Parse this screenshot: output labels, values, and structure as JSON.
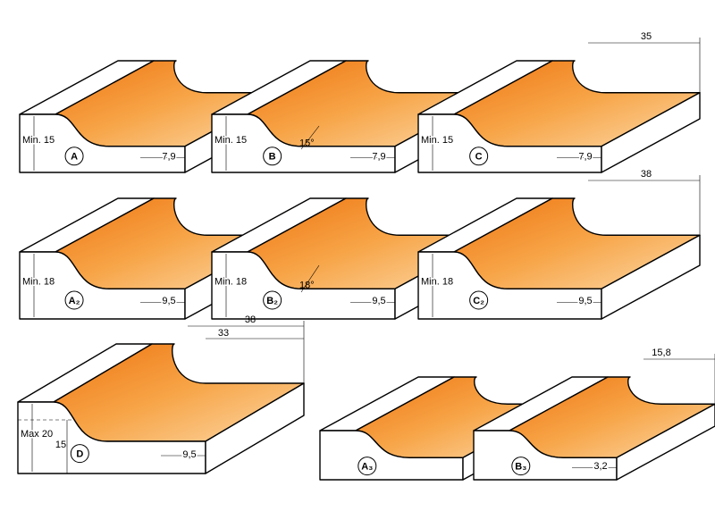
{
  "profiles": [
    {
      "label": "A",
      "min": "Min. 15",
      "width": "7,9"
    },
    {
      "label": "B",
      "min": "Min. 15",
      "angle": "15°",
      "width": "7,9"
    },
    {
      "label": "C",
      "min": "Min. 15",
      "width": "7,9",
      "top": "35"
    },
    {
      "label": "A₂",
      "min": "Min. 18",
      "width": "9,5"
    },
    {
      "label": "B₂",
      "min": "Min. 18",
      "angle": "18°",
      "width": "9,5"
    },
    {
      "label": "C₂",
      "min": "Min. 18",
      "width": "9,5",
      "top": "38"
    },
    {
      "label": "D",
      "min": "Max 20",
      "depth": "15",
      "width": "9,5",
      "top": "38",
      "top2": "33"
    },
    {
      "label": "A₃"
    },
    {
      "label": "B₃",
      "width": "3,2",
      "top": "15,8"
    }
  ]
}
